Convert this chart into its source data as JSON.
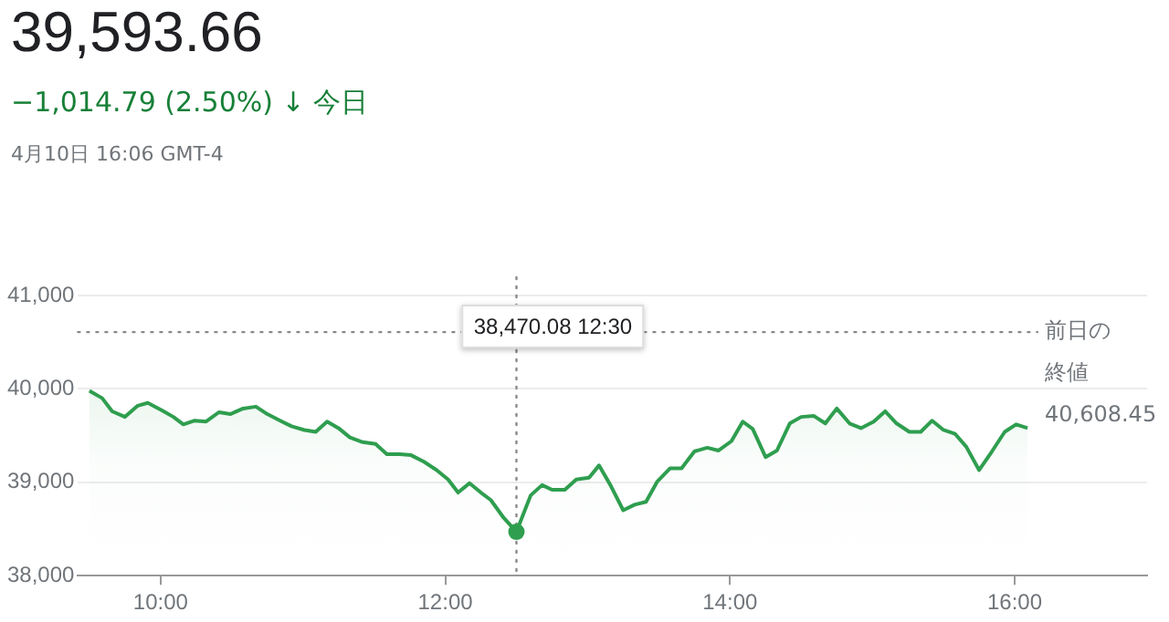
{
  "chart_data": {
    "type": "area",
    "title": "39,593.66",
    "subtitle": "−1,014.79 (2.50%) ↓ 今日",
    "annotations": [
      "4月10日 16:06 GMT-4",
      "38,470.08 12:30"
    ],
    "x": [
      9.5,
      9.59,
      9.66,
      9.75,
      9.84,
      9.91,
      10.01,
      10.09,
      10.16,
      10.24,
      10.32,
      10.41,
      10.49,
      10.58,
      10.67,
      10.75,
      10.84,
      10.92,
      11.01,
      11.09,
      11.17,
      11.25,
      11.33,
      11.42,
      11.51,
      11.59,
      11.68,
      11.76,
      11.85,
      11.94,
      12.02,
      12.09,
      12.17,
      12.25,
      12.32,
      12.41,
      12.5,
      12.6,
      12.68,
      12.75,
      12.84,
      12.92,
      13.01,
      13.08,
      13.16,
      13.25,
      13.33,
      13.41,
      13.49,
      13.58,
      13.66,
      13.75,
      13.84,
      13.92,
      14.01,
      14.09,
      14.16,
      14.25,
      14.33,
      14.42,
      14.5,
      14.59,
      14.67,
      14.75,
      14.84,
      14.92,
      15.01,
      15.09,
      15.17,
      15.26,
      15.34,
      15.42,
      15.5,
      15.58,
      15.66,
      15.75,
      15.84,
      15.93,
      16.01,
      16.09
    ],
    "series": [
      {
        "color": "#2f9e4f",
        "values": [
          39980,
          39900,
          39760,
          39700,
          39820,
          39850,
          39770,
          39700,
          39620,
          39660,
          39650,
          39750,
          39730,
          39790,
          39810,
          39730,
          39660,
          39600,
          39560,
          39540,
          39650,
          39580,
          39480,
          39430,
          39410,
          39300,
          39300,
          39290,
          39220,
          39130,
          39030,
          38890,
          38990,
          38890,
          38810,
          38620,
          38470,
          38860,
          38970,
          38920,
          38920,
          39030,
          39050,
          39180,
          38970,
          38700,
          38760,
          38790,
          39010,
          39150,
          39150,
          39330,
          39370,
          39340,
          39440,
          39650,
          39570,
          39270,
          39340,
          39630,
          39700,
          39710,
          39630,
          39790,
          39630,
          39580,
          39650,
          39760,
          39630,
          39540,
          39540,
          39660,
          39560,
          39520,
          39380,
          39130,
          39330,
          39540,
          39620,
          39580
        ]
      }
    ],
    "xlim": [
      9.42,
      16.93
    ],
    "xticks": [
      {
        "value": 10,
        "label": "10:00"
      },
      {
        "value": 12,
        "label": "12:00"
      },
      {
        "value": 14,
        "label": "14:00"
      },
      {
        "value": 16,
        "label": "16:00"
      }
    ],
    "ylim": [
      38000,
      41000
    ],
    "yticks": [
      {
        "value": 38000,
        "label": "38,000"
      },
      {
        "value": 39000,
        "label": "39,000"
      },
      {
        "value": 40000,
        "label": "40,000"
      },
      {
        "value": 41000,
        "label": "41,000"
      }
    ],
    "ref_lines": [
      {
        "axis": "y",
        "value": 40608.45,
        "label": "前日の終値 40,608.45",
        "color": "#888888",
        "line_style": "dotted"
      },
      {
        "axis": "x",
        "value": 12.5,
        "color": "#888888",
        "line_style": "dotted"
      }
    ],
    "grid": "y",
    "legend": false,
    "marker": "none",
    "line_style": "solid"
  }
}
